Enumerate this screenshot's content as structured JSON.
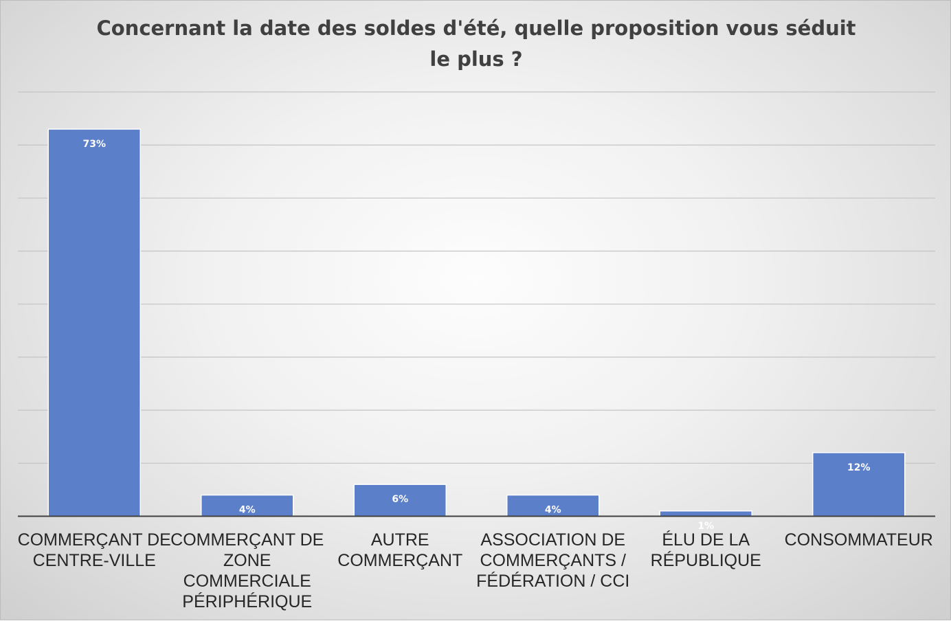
{
  "chart_data": {
    "type": "bar",
    "title": "Concernant la date des soldes d'été, quelle proposition vous séduit le plus ?",
    "categories": [
      [
        "COMMERÇANT DE",
        "CENTRE-VILLE"
      ],
      [
        "COMMERÇANT DE",
        "ZONE",
        "COMMERCIALE",
        "PÉRIPHÉRIQUE"
      ],
      [
        "AUTRE",
        "COMMERÇANT"
      ],
      [
        "ASSOCIATION DE",
        "COMMERÇANTS /",
        "FÉDÉRATION / CCI"
      ],
      [
        "ÉLU DE LA",
        "RÉPUBLIQUE"
      ],
      [
        "CONSOMMATEUR"
      ]
    ],
    "values": [
      73,
      4,
      6,
      4,
      1,
      12
    ],
    "data_labels": [
      "73%",
      "4%",
      "6%",
      "4%",
      "1%",
      "12%"
    ],
    "xlabel": "",
    "ylabel": "",
    "ylim": [
      0,
      80
    ],
    "y_gridline_step": 10,
    "y_tick_labels_visible": false,
    "grid": true,
    "legend": "none",
    "bar_color": "#5b7fc9",
    "gridline_color": "#c3c3c3",
    "axis_color": "#404040"
  }
}
